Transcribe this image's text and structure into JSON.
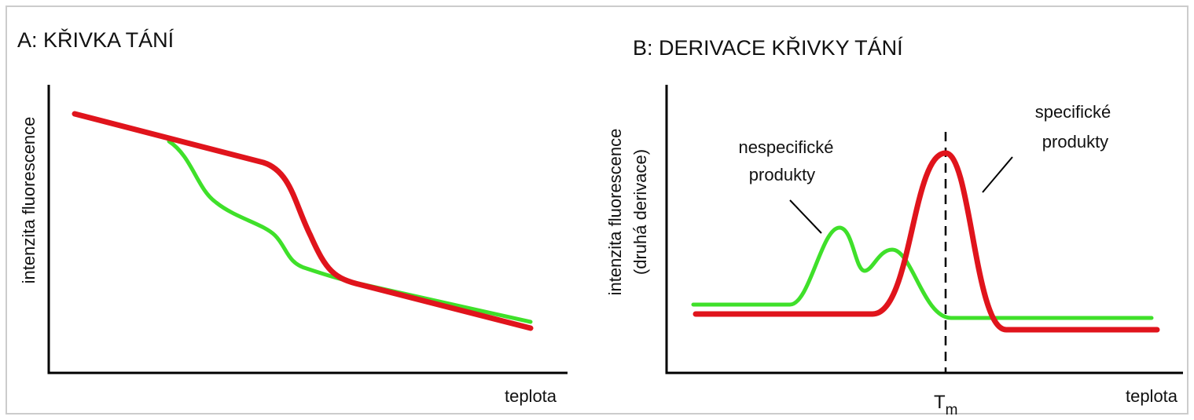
{
  "panels": [
    {
      "title": "A:  KŘIVKA TÁNÍ",
      "y_label": "intenzita fluorescence",
      "x_label": "teplota"
    },
    {
      "title": "B:  DERIVACE KŘIVKY TÁNÍ",
      "y_label": [
        "intenzita fluorescence",
        "(druhá derivace)"
      ],
      "x_label": "teplota",
      "marker": {
        "symbol": "T",
        "subscript": "m"
      },
      "annotations": [
        {
          "lines": [
            "nespecifické",
            "produkty"
          ]
        },
        {
          "lines": [
            "specifické",
            "produkty"
          ]
        }
      ]
    }
  ]
}
